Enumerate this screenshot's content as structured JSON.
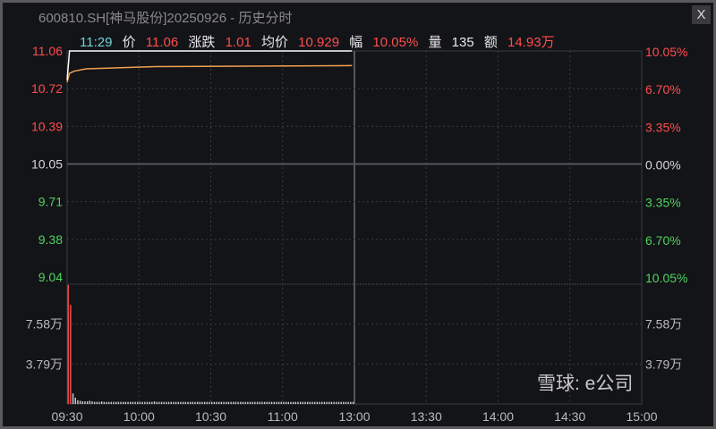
{
  "window": {
    "title": "600810.SH[神马股份]20250926 - 历史分时",
    "close_label": "X"
  },
  "info_bar": {
    "time": "11:29",
    "price_label": "价",
    "price": "11.06",
    "change_label": "涨跌",
    "change": "1.01",
    "avg_label": "均价",
    "avg": "10.929",
    "pct_label": "幅",
    "pct": "10.05%",
    "vol_label": "量",
    "vol": "135",
    "amount_label": "额",
    "amount": "14.93万"
  },
  "watermark": "雪球: e公司",
  "colors": {
    "up": "#ff4d4d",
    "down": "#4fd35f",
    "price_line": "#ffffff",
    "avg_line": "#f0a050",
    "background": "#131418"
  },
  "chart_data": {
    "type": "line",
    "prev_close": 10.05,
    "ylim": [
      9.04,
      11.06
    ],
    "price_ticks": [
      "11.06",
      "10.72",
      "10.39",
      "10.05",
      "9.71",
      "9.38",
      "9.04"
    ],
    "pct_ticks": [
      "10.05%",
      "6.70%",
      "3.35%",
      "0.00%",
      "3.35%",
      "6.70%",
      "10.05%"
    ],
    "x_ticks": [
      "09:30",
      "10:00",
      "10:30",
      "11:00",
      "13:00",
      "13:30",
      "14:00",
      "14:30",
      "15:00"
    ],
    "price_series": [
      [
        "09:30",
        10.8
      ],
      [
        "09:31",
        11.06
      ],
      [
        "11:29",
        11.06
      ]
    ],
    "avg_series": [
      [
        "09:30",
        10.78
      ],
      [
        "09:31",
        10.86
      ],
      [
        "09:33",
        10.88
      ],
      [
        "09:38",
        10.9
      ],
      [
        "10:07",
        10.92
      ],
      [
        "11:29",
        10.929
      ]
    ],
    "volume_unit": "万",
    "volume_ticks": [
      "7.58万",
      "3.79万"
    ],
    "volume_ylim": [
      0,
      11.37
    ],
    "volume": [
      11.3,
      9.4,
      1.0,
      0.6,
      0.35,
      0.3,
      0.25,
      0.25,
      0.25,
      0.3,
      0.25,
      0.2,
      0.2,
      0.2,
      0.25,
      0.2,
      0.2,
      0.2,
      0.2,
      0.2,
      0.2,
      0.2,
      0.2,
      0.2,
      0.2,
      0.2,
      0.2,
      0.2,
      0.2,
      0.2,
      0.2,
      0.2,
      0.2,
      0.2,
      0.2,
      0.2,
      0.25,
      0.2,
      0.2,
      0.2,
      0.2,
      0.2,
      0.2,
      0.2,
      0.2,
      0.2,
      0.2,
      0.2,
      0.2,
      0.2,
      0.2,
      0.2,
      0.2,
      0.2,
      0.2,
      0.2,
      0.2,
      0.2,
      0.2,
      0.2,
      0.2,
      0.2,
      0.2,
      0.2,
      0.2,
      0.2,
      0.2,
      0.2,
      0.2,
      0.2,
      0.2,
      0.2,
      0.2,
      0.2,
      0.2,
      0.2,
      0.2,
      0.2,
      0.2,
      0.2,
      0.2,
      0.2,
      0.2,
      0.2,
      0.2,
      0.2,
      0.2,
      0.2,
      0.2,
      0.2,
      0.2,
      0.2,
      0.2,
      0.2,
      0.2,
      0.2,
      0.2,
      0.2,
      0.2,
      0.2,
      0.2,
      0.2,
      0.2,
      0.2,
      0.2,
      0.2,
      0.2,
      0.2,
      0.2,
      0.2,
      0.2,
      0.2,
      0.2,
      0.2,
      0.2,
      0.2,
      0.2,
      0.2,
      0.2,
      0.2
    ]
  }
}
